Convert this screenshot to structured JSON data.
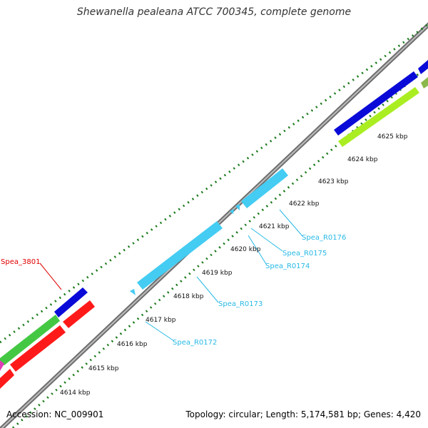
{
  "title": "Shewanella pealeana ATCC 700345, complete genome",
  "footer": {
    "accession": "Accession: NC_009901",
    "summary": "Topology: circular; Length: 5,174,581 bp; Genes: 4,420"
  },
  "colors": {
    "backbone": "#8a8a8a",
    "tick": "#1a7a1a",
    "rRNA": "#44ccf2",
    "cds_blue": "#0a0ad8",
    "cds_red": "#ff1a1a",
    "cds_green": "#44c844",
    "cds_lime": "#aaee22",
    "cds_magenta": "#e23ab8",
    "label_red": "#e00000",
    "label_cyan": "#29b9e6"
  },
  "tick_labels": [
    "4614 kbp",
    "4615 kbp",
    "4616 kbp",
    "4617 kbp",
    "4618 kbp",
    "4619 kbp",
    "4620 kbp",
    "4621 kbp",
    "4622 kbp",
    "4623 kbp",
    "4624 kbp",
    "4625 kbp"
  ],
  "gene_labels": [
    {
      "name": "Spea_3801",
      "color": "label_red"
    },
    {
      "name": "Spea_R0172",
      "color": "label_cyan"
    },
    {
      "name": "Spea_R0173",
      "color": "label_cyan"
    },
    {
      "name": "Spea_R0174",
      "color": "label_cyan"
    },
    {
      "name": "Spea_R0175",
      "color": "label_cyan"
    },
    {
      "name": "Spea_R0176",
      "color": "label_cyan"
    }
  ]
}
